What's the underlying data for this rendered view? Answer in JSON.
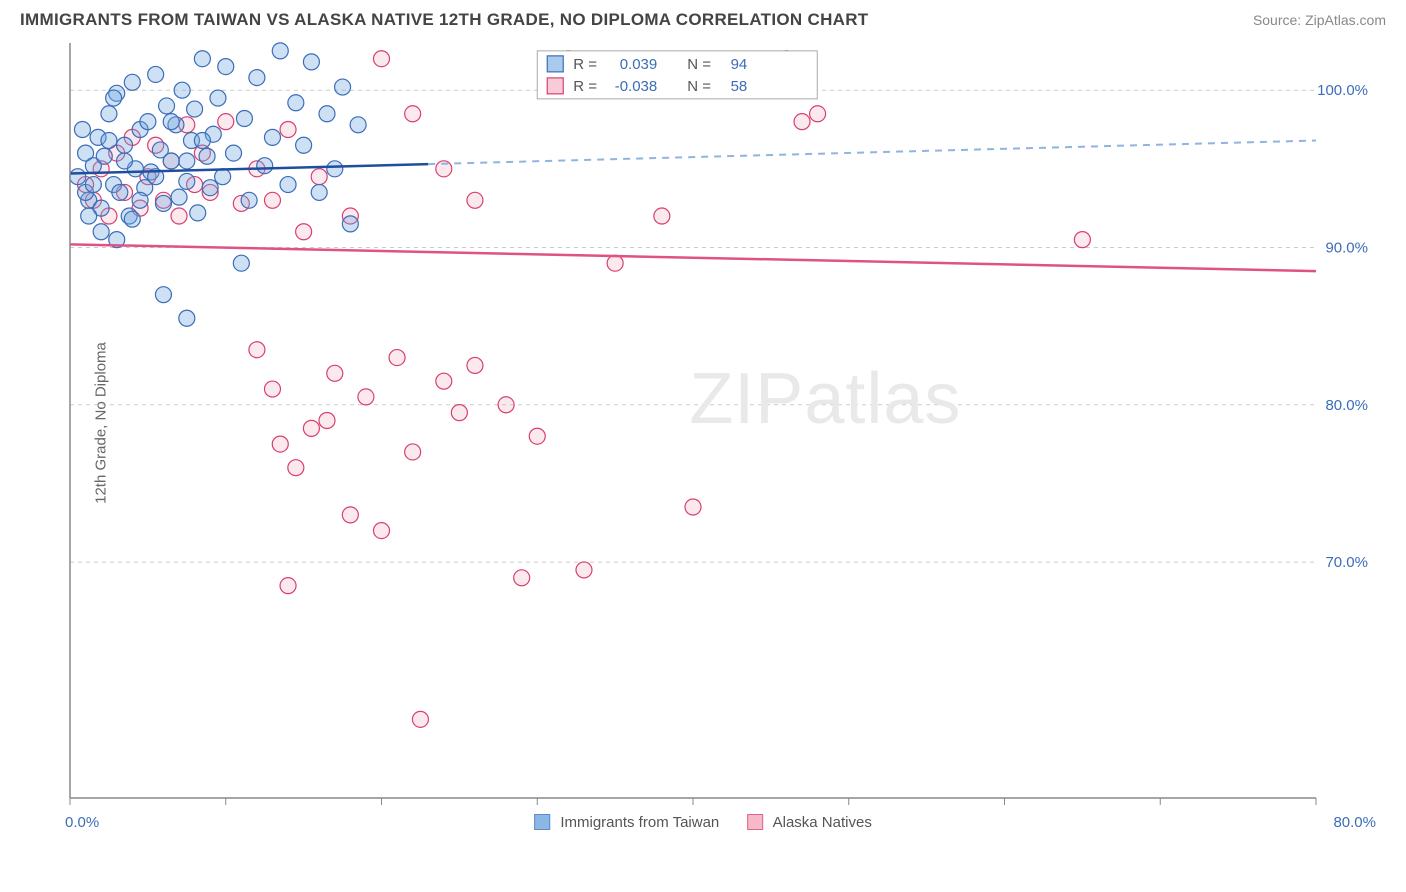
{
  "title": "IMMIGRANTS FROM TAIWAN VS ALASKA NATIVE 12TH GRADE, NO DIPLOMA CORRELATION CHART",
  "source": "Source: ZipAtlas.com",
  "ylabel": "12th Grade, No Diploma",
  "watermark": {
    "part1": "ZIP",
    "part2": "atlas"
  },
  "chart": {
    "type": "scatter",
    "xlim": [
      0.0,
      80.0
    ],
    "ylim": [
      55.0,
      103.0
    ],
    "ytick_labels": [
      "70.0%",
      "80.0%",
      "90.0%",
      "100.0%"
    ],
    "ytick_values": [
      70,
      80,
      90,
      100
    ],
    "xtick_values": [
      0,
      10,
      20,
      30,
      40,
      50,
      60,
      70,
      80
    ],
    "xtick_labels_shown": {
      "first": "0.0%",
      "last": "80.0%"
    },
    "grid_color": "#cccccc",
    "axis_color": "#888888",
    "background": "#ffffff",
    "marker_radius": 8,
    "series": {
      "a": {
        "label": "Immigrants from Taiwan",
        "fill": "#6fa6e0",
        "stroke": "#3b6db8",
        "r": 0.039,
        "n": 94,
        "trend": {
          "x1": 0,
          "y1": 94.7,
          "solid_x2": 23,
          "solid_y2": 95.3,
          "dash_x2": 80,
          "dash_y2": 96.8,
          "solid_color": "#1f4e9c",
          "dash_color": "#8fb4df"
        },
        "points": [
          [
            0.5,
            94.5
          ],
          [
            1.0,
            96.0
          ],
          [
            1.2,
            93.0
          ],
          [
            1.5,
            95.2
          ],
          [
            1.8,
            97.0
          ],
          [
            2.0,
            92.5
          ],
          [
            2.2,
            95.8
          ],
          [
            2.5,
            98.5
          ],
          [
            2.8,
            94.0
          ],
          [
            3.0,
            99.8
          ],
          [
            3.2,
            93.5
          ],
          [
            3.5,
            96.5
          ],
          [
            3.8,
            92.0
          ],
          [
            4.0,
            100.5
          ],
          [
            4.2,
            95.0
          ],
          [
            4.5,
            97.5
          ],
          [
            4.8,
            93.8
          ],
          [
            5.0,
            98.0
          ],
          [
            5.2,
            94.8
          ],
          [
            5.5,
            101.0
          ],
          [
            5.8,
            96.2
          ],
          [
            6.0,
            92.8
          ],
          [
            6.2,
            99.0
          ],
          [
            6.5,
            95.5
          ],
          [
            6.8,
            97.8
          ],
          [
            7.0,
            93.2
          ],
          [
            7.2,
            100.0
          ],
          [
            7.5,
            94.2
          ],
          [
            7.8,
            96.8
          ],
          [
            8.0,
            98.8
          ],
          [
            8.2,
            92.2
          ],
          [
            8.5,
            102.0
          ],
          [
            8.8,
            95.8
          ],
          [
            9.0,
            93.8
          ],
          [
            9.2,
            97.2
          ],
          [
            9.5,
            99.5
          ],
          [
            9.8,
            94.5
          ],
          [
            10.0,
            101.5
          ],
          [
            10.5,
            96.0
          ],
          [
            11.0,
            89.0
          ],
          [
            11.2,
            98.2
          ],
          [
            11.5,
            93.0
          ],
          [
            12.0,
            100.8
          ],
          [
            12.5,
            95.2
          ],
          [
            13.0,
            97.0
          ],
          [
            13.5,
            102.5
          ],
          [
            14.0,
            94.0
          ],
          [
            14.5,
            99.2
          ],
          [
            15.0,
            96.5
          ],
          [
            15.5,
            101.8
          ],
          [
            16.0,
            93.5
          ],
          [
            16.5,
            98.5
          ],
          [
            17.0,
            95.0
          ],
          [
            17.5,
            100.2
          ],
          [
            18.0,
            91.5
          ],
          [
            18.5,
            97.8
          ],
          [
            6.0,
            87.0
          ],
          [
            7.5,
            85.5
          ],
          [
            2.0,
            91.0
          ],
          [
            3.0,
            90.5
          ],
          [
            4.0,
            91.8
          ],
          [
            1.0,
            93.5
          ],
          [
            1.5,
            94.0
          ],
          [
            2.5,
            96.8
          ],
          [
            3.5,
            95.5
          ],
          [
            0.8,
            97.5
          ],
          [
            1.2,
            92.0
          ],
          [
            2.8,
            99.5
          ],
          [
            4.5,
            93.0
          ],
          [
            5.5,
            94.5
          ],
          [
            6.5,
            98.0
          ],
          [
            7.5,
            95.5
          ],
          [
            8.5,
            96.8
          ]
        ]
      },
      "b": {
        "label": "Alaska Natives",
        "fill": "#f5a8bd",
        "stroke": "#d83f70",
        "r": -0.038,
        "n": 58,
        "trend": {
          "x1": 0,
          "y1": 90.2,
          "x2": 80,
          "y2": 88.5,
          "color": "#e05285"
        },
        "points": [
          [
            1.0,
            94.0
          ],
          [
            1.5,
            93.0
          ],
          [
            2.0,
            95.0
          ],
          [
            2.5,
            92.0
          ],
          [
            3.0,
            96.0
          ],
          [
            3.5,
            93.5
          ],
          [
            4.0,
            97.0
          ],
          [
            4.5,
            92.5
          ],
          [
            5.0,
            94.5
          ],
          [
            5.5,
            96.5
          ],
          [
            6.0,
            93.0
          ],
          [
            6.5,
            95.5
          ],
          [
            7.0,
            92.0
          ],
          [
            7.5,
            97.8
          ],
          [
            8.0,
            94.0
          ],
          [
            8.5,
            96.0
          ],
          [
            9.0,
            93.5
          ],
          [
            10.0,
            98.0
          ],
          [
            11.0,
            92.8
          ],
          [
            12.0,
            95.0
          ],
          [
            13.0,
            93.0
          ],
          [
            14.0,
            97.5
          ],
          [
            15.0,
            91.0
          ],
          [
            16.0,
            94.5
          ],
          [
            18.0,
            92.0
          ],
          [
            20.0,
            102.0
          ],
          [
            22.0,
            98.5
          ],
          [
            24.0,
            95.0
          ],
          [
            26.0,
            93.0
          ],
          [
            13.5,
            77.5
          ],
          [
            14.5,
            76.0
          ],
          [
            15.5,
            78.5
          ],
          [
            16.5,
            79.0
          ],
          [
            12.0,
            83.5
          ],
          [
            13.0,
            81.0
          ],
          [
            17.0,
            82.0
          ],
          [
            19.0,
            80.5
          ],
          [
            21.0,
            83.0
          ],
          [
            22.0,
            77.0
          ],
          [
            25.0,
            79.5
          ],
          [
            28.0,
            80.0
          ],
          [
            30.0,
            78.0
          ],
          [
            26.0,
            82.5
          ],
          [
            24.0,
            81.5
          ],
          [
            29.0,
            69.0
          ],
          [
            22.5,
            60.0
          ],
          [
            14.0,
            68.5
          ],
          [
            18.0,
            73.0
          ],
          [
            20.0,
            72.0
          ],
          [
            35.0,
            89.0
          ],
          [
            38.0,
            92.0
          ],
          [
            40.0,
            73.5
          ],
          [
            32.0,
            102.0
          ],
          [
            33.0,
            69.5
          ],
          [
            46.0,
            102.0
          ],
          [
            47.0,
            98.0
          ],
          [
            48.0,
            98.5
          ],
          [
            65.0,
            90.5
          ]
        ]
      }
    }
  },
  "legend_labels": {
    "r": "R =",
    "n": "N ="
  }
}
